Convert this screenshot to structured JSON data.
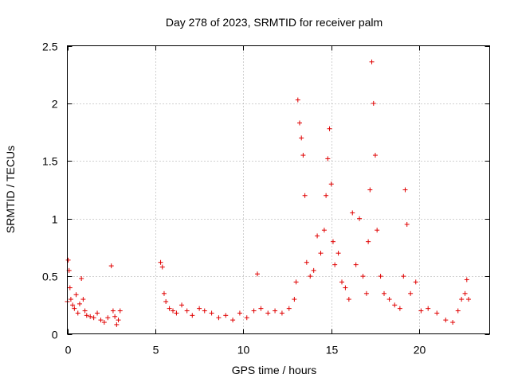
{
  "chart_data": {
    "type": "scatter",
    "title": "Day 278 of 2023, SRMTID for receiver palm",
    "xlabel": "GPS time / hours",
    "ylabel": "SRMTID / TECUs",
    "xlim": [
      0,
      24
    ],
    "ylim": [
      0,
      2.5
    ],
    "xticks": [
      0,
      5,
      10,
      15,
      20
    ],
    "xtick_labels": [
      "0",
      "5",
      "10",
      "15",
      "20"
    ],
    "yticks": [
      0,
      0.5,
      1,
      1.5,
      2,
      2.5
    ],
    "ytick_labels": [
      "0",
      "0.5",
      "1",
      "1.5",
      "2",
      "2.5"
    ],
    "grid": true,
    "marker": "+",
    "color": "#e00000",
    "series": [
      {
        "name": "SRMTID",
        "x": [
          0.0,
          0.05,
          0.1,
          0.15,
          0.2,
          0.3,
          0.4,
          0.5,
          0.6,
          0.7,
          0.8,
          0.9,
          1.0,
          1.1,
          1.3,
          1.5,
          1.7,
          1.9,
          2.1,
          2.3,
          2.5,
          2.6,
          2.7,
          2.8,
          2.9,
          3.0,
          5.3,
          5.4,
          5.5,
          5.6,
          5.8,
          6.0,
          6.2,
          6.5,
          6.8,
          7.1,
          7.5,
          7.8,
          8.2,
          8.6,
          9.0,
          9.4,
          9.8,
          10.2,
          10.6,
          10.8,
          11.0,
          11.4,
          11.8,
          12.2,
          12.6,
          12.9,
          13.0,
          13.1,
          13.2,
          13.3,
          13.4,
          13.5,
          13.6,
          13.8,
          14.0,
          14.2,
          14.4,
          14.6,
          14.7,
          14.8,
          14.9,
          15.0,
          15.1,
          15.2,
          15.4,
          15.6,
          15.8,
          16.0,
          16.2,
          16.4,
          16.6,
          16.8,
          17.0,
          17.1,
          17.2,
          17.3,
          17.4,
          17.5,
          17.6,
          17.8,
          18.0,
          18.3,
          18.6,
          18.9,
          19.1,
          19.2,
          19.3,
          19.5,
          19.8,
          20.1,
          20.5,
          21.0,
          21.5,
          21.9,
          22.2,
          22.4,
          22.6,
          22.7,
          22.8
        ],
        "y": [
          0.28,
          0.64,
          0.55,
          0.4,
          0.3,
          0.25,
          0.22,
          0.34,
          0.18,
          0.26,
          0.48,
          0.3,
          0.2,
          0.16,
          0.15,
          0.14,
          0.18,
          0.12,
          0.1,
          0.14,
          0.59,
          0.2,
          0.15,
          0.08,
          0.12,
          0.2,
          0.62,
          0.58,
          0.35,
          0.28,
          0.22,
          0.2,
          0.18,
          0.25,
          0.2,
          0.16,
          0.22,
          0.2,
          0.18,
          0.14,
          0.16,
          0.12,
          0.18,
          0.14,
          0.2,
          0.52,
          0.22,
          0.18,
          0.2,
          0.18,
          0.22,
          0.3,
          0.45,
          2.03,
          1.83,
          1.7,
          1.55,
          1.2,
          0.62,
          0.5,
          0.55,
          0.85,
          0.7,
          0.9,
          1.2,
          1.52,
          1.78,
          1.3,
          0.8,
          0.6,
          0.7,
          0.45,
          0.4,
          0.3,
          1.05,
          0.6,
          1.0,
          0.5,
          0.35,
          0.8,
          1.25,
          2.36,
          2.0,
          1.55,
          0.9,
          0.5,
          0.35,
          0.3,
          0.25,
          0.22,
          0.5,
          1.25,
          0.95,
          0.35,
          0.45,
          0.2,
          0.22,
          0.18,
          0.12,
          0.1,
          0.2,
          0.3,
          0.35,
          0.47,
          0.3
        ]
      }
    ]
  }
}
